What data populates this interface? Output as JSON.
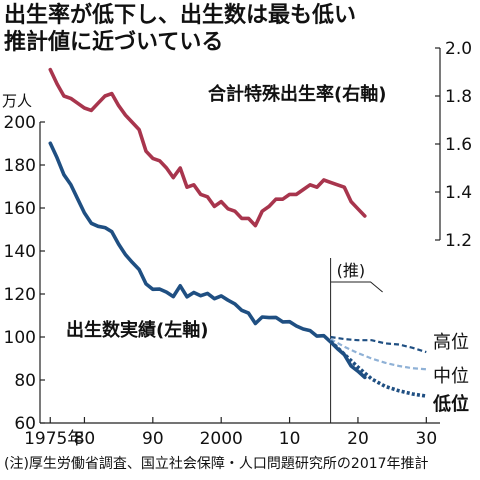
{
  "title": [
    "出生率が低下し、出生数は最も低い",
    "推計値に近づいている"
  ],
  "footnote": "(注)厚生労働省調査、国立社会保障・人口問題研究所の2017年推計",
  "chart_data": {
    "type": "line",
    "x_ticks": [
      {
        "value": 1975,
        "label": "1975年"
      },
      {
        "value": 1980,
        "label": "80"
      },
      {
        "value": 1990,
        "label": "90"
      },
      {
        "value": 2000,
        "label": "2000"
      },
      {
        "value": 2010,
        "label": "10"
      },
      {
        "value": 2020,
        "label": "20"
      },
      {
        "value": 2030,
        "label": "30"
      }
    ],
    "xlim": [
      1973.5,
      2032
    ],
    "left_axis": {
      "unit": "万人",
      "ticks": [
        60,
        80,
        100,
        120,
        140,
        160,
        180,
        200
      ],
      "ylim": [
        60,
        200
      ]
    },
    "right_axis": {
      "ticks": [
        "1.2",
        "1.4",
        "1.6",
        "1.8",
        "2.0"
      ],
      "ylim": [
        1.2,
        2.0
      ]
    },
    "projection_start": 2016,
    "projection_label": "(推)",
    "series": [
      {
        "name": "合計特殊出生率(右軸)",
        "axis": "right",
        "color": "#a8354d",
        "x": [
          1975,
          1976,
          1977,
          1978,
          1979,
          1980,
          1981,
          1982,
          1983,
          1984,
          1985,
          1986,
          1987,
          1988,
          1989,
          1990,
          1991,
          1992,
          1993,
          1994,
          1995,
          1996,
          1997,
          1998,
          1999,
          2000,
          2001,
          2002,
          2003,
          2004,
          2005,
          2006,
          2007,
          2008,
          2009,
          2010,
          2011,
          2012,
          2013,
          2014,
          2015,
          2016,
          2017,
          2018,
          2019,
          2020,
          2021
        ],
        "y": [
          1.91,
          1.85,
          1.8,
          1.79,
          1.77,
          1.75,
          1.74,
          1.77,
          1.8,
          1.81,
          1.76,
          1.72,
          1.69,
          1.66,
          1.57,
          1.54,
          1.53,
          1.5,
          1.46,
          1.5,
          1.42,
          1.43,
          1.39,
          1.38,
          1.34,
          1.36,
          1.33,
          1.32,
          1.29,
          1.29,
          1.26,
          1.32,
          1.34,
          1.37,
          1.37,
          1.39,
          1.39,
          1.41,
          1.43,
          1.42,
          1.45,
          1.44,
          1.43,
          1.42,
          1.36,
          1.33,
          1.3
        ]
      },
      {
        "name": "出生数実績(左軸)",
        "axis": "left",
        "color": "#1f4f82",
        "x": [
          1975,
          1976,
          1977,
          1978,
          1979,
          1980,
          1981,
          1982,
          1983,
          1984,
          1985,
          1986,
          1987,
          1988,
          1989,
          1990,
          1991,
          1992,
          1993,
          1994,
          1995,
          1996,
          1997,
          1998,
          1999,
          2000,
          2001,
          2002,
          2003,
          2004,
          2005,
          2006,
          2007,
          2008,
          2009,
          2010,
          2011,
          2012,
          2013,
          2014,
          2015,
          2016,
          2017,
          2018,
          2019,
          2020,
          2021
        ],
        "y": [
          190.1,
          183.3,
          175.5,
          170.9,
          164.3,
          157.7,
          152.9,
          151.5,
          150.9,
          149.0,
          143.2,
          138.3,
          134.7,
          131.4,
          124.7,
          122.2,
          122.3,
          120.9,
          118.8,
          123.8,
          118.7,
          120.7,
          119.2,
          120.3,
          117.8,
          119.1,
          117.1,
          115.4,
          112.4,
          111.1,
          106.3,
          109.3,
          109.0,
          109.1,
          107.0,
          107.1,
          105.1,
          103.7,
          103.0,
          100.4,
          100.6,
          97.7,
          94.6,
          91.8,
          86.5,
          84.1,
          81.2
        ]
      },
      {
        "name": "高位",
        "axis": "left",
        "color": "#1f4f82",
        "style": "dashed",
        "x": [
          2016,
          2018,
          2020,
          2022,
          2024,
          2026,
          2028,
          2030
        ],
        "y": [
          100.0,
          99.0,
          98.5,
          98.5,
          97.0,
          96.5,
          95.0,
          93.0
        ]
      },
      {
        "name": "中位",
        "axis": "left",
        "color": "#8fb1d6",
        "style": "dashed",
        "x": [
          2016,
          2018,
          2020,
          2022,
          2024,
          2026,
          2028,
          2030
        ],
        "y": [
          99.0,
          95.5,
          92.5,
          90.0,
          88.0,
          86.5,
          85.5,
          85.0
        ]
      },
      {
        "name": "低位",
        "axis": "left",
        "color": "#1f4f82",
        "style": "dotted-bold",
        "x": [
          2016,
          2018,
          2020,
          2022,
          2024,
          2026,
          2028,
          2030
        ],
        "y": [
          98.0,
          92.0,
          86.0,
          80.5,
          77.0,
          75.0,
          73.5,
          72.5
        ]
      }
    ],
    "labels": {
      "rate": "合計特殊出生率(右軸)",
      "births": "出生数実績(左軸)",
      "high": "高位",
      "mid": "中位",
      "low": "低位"
    }
  }
}
